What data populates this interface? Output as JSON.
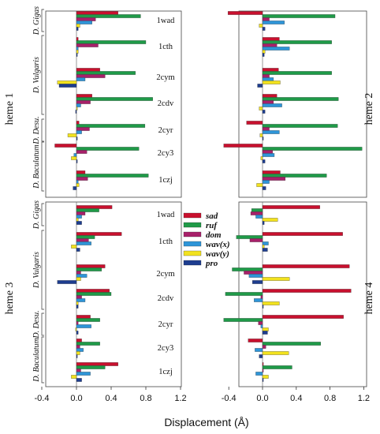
{
  "chart_data": {
    "type": "bar",
    "orientation": "horizontal",
    "xlabel": "Displacement (Å)",
    "xlim": [
      -0.5,
      1.2
    ],
    "xticks": [
      "-0.4",
      "0.0",
      "0.4",
      "0.8",
      "1.2"
    ],
    "xtick_values": [
      -0.4,
      0.0,
      0.4,
      0.8,
      1.2
    ],
    "grid": false,
    "legend_placement": "center",
    "legend": [
      {
        "name": "sad",
        "color": "#c8102e"
      },
      {
        "name": "ruf",
        "color": "#1f9a48"
      },
      {
        "name": "dom",
        "color": "#a8206a"
      },
      {
        "name": "wav(x)",
        "color": "#2e95d8"
      },
      {
        "name": "wav(y)",
        "color": "#f2e21e"
      },
      {
        "name": "pro",
        "color": "#1d3d8f"
      }
    ],
    "proteins": [
      "1wad",
      "1cth",
      "2cym",
      "2cdv",
      "2cyr",
      "2cy3",
      "1czj"
    ],
    "species_groups": [
      {
        "label": "D. Gigas",
        "proteins": [
          "1wad"
        ]
      },
      {
        "label": "D. Vulgaris",
        "proteins": [
          "1cth",
          "2cym",
          "2cdv"
        ]
      },
      {
        "label": "D. Desu.",
        "proteins": [
          "2cyr"
        ]
      },
      {
        "label": "D. Baculatum",
        "proteins": [
          "2cy3",
          "1czj"
        ]
      }
    ],
    "panels": [
      {
        "label": "heme 1",
        "values": {
          "1wad": [
            0.48,
            0.74,
            0.22,
            0.18,
            0.04,
            0.02
          ],
          "1cth": [
            0.02,
            0.8,
            0.25,
            0.02,
            0.02,
            0.01
          ],
          "2cym": [
            0.27,
            0.68,
            0.33,
            0.1,
            -0.22,
            -0.2
          ],
          "2cdv": [
            0.18,
            0.88,
            0.16,
            0.05,
            0.01,
            -0.01
          ],
          "2cyr": [
            0.03,
            0.79,
            0.15,
            0.06,
            -0.1,
            0.01
          ],
          "2cy3": [
            -0.25,
            0.72,
            0.12,
            -0.03,
            -0.06,
            0.01
          ],
          "1czj": [
            0.1,
            0.83,
            0.13,
            0.02,
            0.03,
            -0.04
          ]
        }
      },
      {
        "label": "heme 2",
        "values": {
          "1wad": [
            -0.41,
            0.86,
            0.08,
            0.26,
            -0.04,
            0.03
          ],
          "1cth": [
            0.2,
            0.82,
            0.17,
            0.32,
            0.03,
            0.02
          ],
          "2cym": [
            0.19,
            0.82,
            0.08,
            0.13,
            0.21,
            -0.06
          ],
          "2cdv": [
            0.17,
            0.9,
            0.13,
            0.23,
            -0.04,
            0.03
          ],
          "2cyr": [
            -0.19,
            0.89,
            0.08,
            0.2,
            -0.03,
            0.01
          ],
          "2cy3": [
            -0.46,
            1.18,
            0.12,
            0.14,
            -0.02,
            0.03
          ],
          "1czj": [
            0.21,
            0.76,
            0.27,
            0.08,
            -0.07,
            0.04
          ]
        }
      },
      {
        "label": "heme 3",
        "values": {
          "1wad": [
            0.41,
            0.26,
            0.1,
            0.06,
            0.02,
            0.06
          ],
          "1cth": [
            0.52,
            0.21,
            0.14,
            0.17,
            -0.06,
            0.04
          ],
          "2cym": [
            0.33,
            0.29,
            0.05,
            0.12,
            0.05,
            -0.22
          ],
          "2cdv": [
            0.38,
            0.4,
            0.06,
            0.1,
            0.02,
            0.02
          ],
          "2cyr": [
            0.16,
            0.27,
            0.02,
            0.17,
            -0.01,
            0.02
          ],
          "2cy3": [
            0.06,
            0.27,
            0.04,
            0.08,
            0.04,
            0.01
          ],
          "1czj": [
            0.48,
            0.33,
            0.05,
            0.16,
            -0.06,
            0.06
          ]
        }
      },
      {
        "label": "heme 4",
        "values": {
          "1wad": [
            0.68,
            -0.13,
            -0.14,
            -0.08,
            0.18,
            0.02
          ],
          "1cth": [
            0.95,
            -0.31,
            -0.15,
            0.07,
            0.02,
            0.06
          ],
          "2cym": [
            1.03,
            -0.36,
            -0.22,
            -0.16,
            0.32,
            -0.12
          ],
          "2cdv": [
            1.05,
            -0.44,
            -0.02,
            -0.1,
            0.2,
            0.01
          ],
          "2cyr": [
            0.96,
            -0.46,
            -0.05,
            -0.02,
            0.07,
            0.06
          ],
          "2cy3": [
            -0.17,
            0.69,
            0.04,
            -0.09,
            0.31,
            -0.04
          ],
          "1czj": [
            0.01,
            0.35,
            0.01,
            -0.08,
            0.07,
            0.01
          ]
        }
      }
    ]
  }
}
